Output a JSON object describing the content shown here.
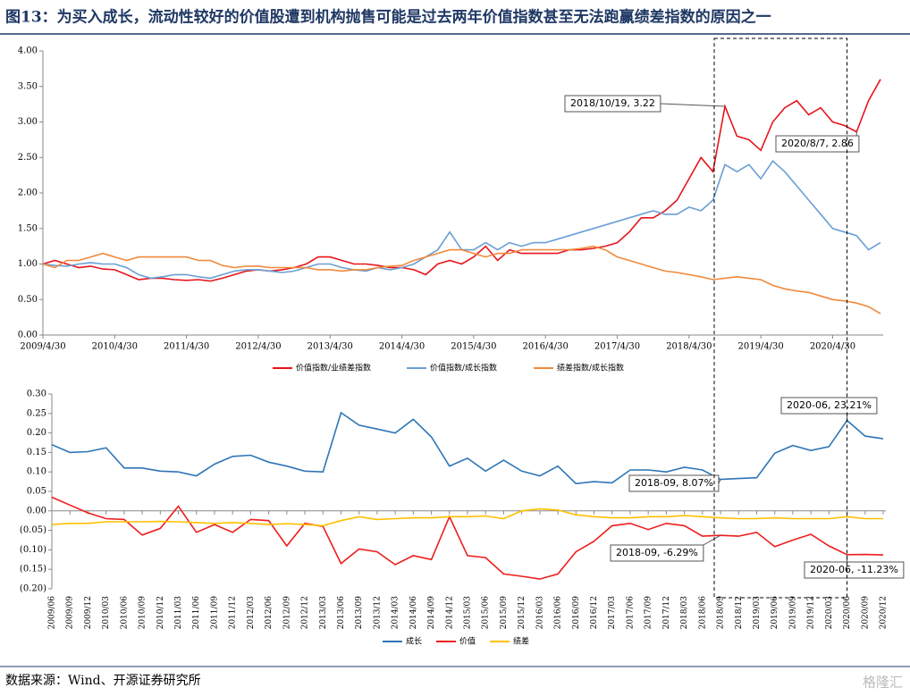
{
  "title": "图13：为买入成长，流动性较好的价值股遭到机构抛售可能是过去两年价值指数甚至无法跑赢绩差指数的原因之一",
  "source": "数据来源：Wind、开源证券研究所",
  "watermark": "格隆汇",
  "chart_data": [
    {
      "type": "line",
      "categories": [
        "2009/4/30",
        null,
        null,
        null,
        null,
        null,
        "2010/4/30",
        null,
        null,
        null,
        null,
        null,
        "2011/4/30",
        null,
        null,
        null,
        null,
        null,
        "2012/4/30",
        null,
        null,
        null,
        null,
        null,
        "2013/4/30",
        null,
        null,
        null,
        null,
        null,
        "2014/4/30",
        null,
        null,
        null,
        null,
        null,
        "2015/4/30",
        null,
        null,
        null,
        null,
        null,
        "2016/4/30",
        null,
        null,
        null,
        null,
        null,
        "2017/4/30",
        null,
        null,
        null,
        null,
        null,
        "2018/4/30",
        null,
        null,
        null,
        null,
        null,
        "2019/4/30",
        null,
        null,
        null,
        null,
        null,
        "2020/4/30",
        null,
        null,
        null,
        null
      ],
      "series": [
        {
          "name": "价值指数/业绩差指数",
          "color": "#e8141c",
          "values": [
            1.0,
            1.05,
            1.0,
            0.95,
            0.97,
            0.93,
            0.92,
            0.85,
            0.78,
            0.8,
            0.8,
            0.78,
            0.77,
            0.78,
            0.76,
            0.8,
            0.85,
            0.9,
            0.92,
            0.9,
            0.92,
            0.95,
            1.0,
            1.1,
            1.1,
            1.05,
            1.0,
            1.0,
            0.98,
            0.95,
            0.95,
            0.92,
            0.85,
            1.0,
            1.05,
            1.0,
            1.1,
            1.25,
            1.05,
            1.2,
            1.15,
            1.15,
            1.15,
            1.15,
            1.2,
            1.2,
            1.22,
            1.25,
            1.3,
            1.45,
            1.65,
            1.65,
            1.75,
            1.9,
            2.2,
            2.5,
            2.3,
            3.22,
            2.8,
            2.75,
            2.6,
            3.0,
            3.2,
            3.3,
            3.1,
            3.2,
            3.0,
            2.95,
            2.86,
            3.3,
            3.6
          ]
        },
        {
          "name": "价值指数/成长指数",
          "color": "#6a9fd4",
          "values": [
            1.0,
            0.98,
            0.97,
            1.0,
            1.02,
            1.0,
            1.0,
            0.95,
            0.85,
            0.8,
            0.82,
            0.85,
            0.85,
            0.82,
            0.8,
            0.85,
            0.9,
            0.92,
            0.92,
            0.9,
            0.88,
            0.9,
            0.95,
            1.0,
            1.0,
            0.95,
            0.92,
            0.9,
            0.95,
            0.92,
            0.95,
            1.0,
            1.1,
            1.2,
            1.45,
            1.2,
            1.2,
            1.3,
            1.2,
            1.3,
            1.25,
            1.3,
            1.3,
            1.35,
            1.4,
            1.45,
            1.5,
            1.55,
            1.6,
            1.65,
            1.7,
            1.75,
            1.7,
            1.7,
            1.8,
            1.75,
            1.9,
            2.4,
            2.3,
            2.4,
            2.2,
            2.45,
            2.3,
            2.1,
            1.9,
            1.7,
            1.5,
            1.45,
            1.4,
            1.2,
            1.3
          ]
        },
        {
          "name": "绩差指数/成长指数",
          "color": "#f08a3c",
          "values": [
            1.0,
            0.95,
            1.05,
            1.05,
            1.1,
            1.15,
            1.1,
            1.05,
            1.1,
            1.1,
            1.1,
            1.1,
            1.1,
            1.05,
            1.05,
            0.98,
            0.95,
            0.97,
            0.97,
            0.95,
            0.95,
            0.95,
            0.95,
            0.92,
            0.92,
            0.9,
            0.92,
            0.92,
            0.95,
            0.97,
            0.98,
            1.05,
            1.1,
            1.15,
            1.2,
            1.2,
            1.15,
            1.1,
            1.15,
            1.15,
            1.2,
            1.2,
            1.2,
            1.2,
            1.2,
            1.22,
            1.25,
            1.2,
            1.1,
            1.05,
            1.0,
            0.95,
            0.9,
            0.88,
            0.85,
            0.82,
            0.78,
            0.8,
            0.82,
            0.8,
            0.78,
            0.7,
            0.65,
            0.62,
            0.6,
            0.55,
            0.5,
            0.48,
            0.45,
            0.4,
            0.3
          ]
        }
      ],
      "ylim": [
        0,
        4
      ],
      "yticks": [
        {
          "value": 0,
          "label": "0.00"
        },
        {
          "value": 0.5,
          "label": "0.50"
        },
        {
          "value": 1,
          "label": "1.00"
        },
        {
          "value": 1.5,
          "label": "1.50"
        },
        {
          "value": 2,
          "label": "2.00"
        },
        {
          "value": 2.5,
          "label": "2.50"
        },
        {
          "value": 3,
          "label": "3.00"
        },
        {
          "value": 3.5,
          "label": "3.50"
        },
        {
          "value": 4,
          "label": "4.00"
        }
      ],
      "annotations": [
        "2018/10/19, 3.22",
        "2020/8/7, 2.86"
      ],
      "grid": false,
      "legend": "bottom"
    },
    {
      "type": "line",
      "categories": [
        "2009/06",
        "2009/09",
        "2009/12",
        "2010/03",
        "2010/06",
        "2010/09",
        "2010/12",
        "2011/03",
        "2011/06",
        "2011/09",
        "2011/12",
        "2012/03",
        "2012/06",
        "2012/09",
        "2012/12",
        "2013/03",
        "2013/06",
        "2013/09",
        "2013/12",
        "2014/03",
        "2014/06",
        "2014/09",
        "2014/12",
        "2015/03",
        "2015/06",
        "2015/09",
        "2015/12",
        "2016/03",
        "2016/06",
        "2016/09",
        "2016/12",
        "2017/03",
        "2017/06",
        "2017/09",
        "2017/12",
        "2018/03",
        "2018/06",
        "2018/09",
        "2018/12",
        "2019/03",
        "2019/06",
        "2019/09",
        "2019/12",
        "2020/03",
        "2020/06",
        "2020/09",
        "2020/12"
      ],
      "series": [
        {
          "name": "成长",
          "color": "#2e75b6",
          "values": [
            0.17,
            0.15,
            0.152,
            0.162,
            0.11,
            0.11,
            0.102,
            0.1,
            0.09,
            0.12,
            0.14,
            0.143,
            0.125,
            0.115,
            0.102,
            0.1,
            0.252,
            0.22,
            0.21,
            0.2,
            0.235,
            0.19,
            0.115,
            0.135,
            0.102,
            0.13,
            0.102,
            0.09,
            0.115,
            0.07,
            0.075,
            0.072,
            0.105,
            0.105,
            0.1,
            0.112,
            0.105,
            0.0807,
            0.083,
            0.085,
            0.148,
            0.168,
            0.155,
            0.165,
            0.2321,
            0.192,
            0.185
          ]
        },
        {
          "name": "价值",
          "color": "#ee1c1c",
          "values": [
            0.035,
            0.015,
            -0.005,
            -0.02,
            -0.022,
            -0.062,
            -0.045,
            0.012,
            -0.055,
            -0.035,
            -0.055,
            -0.022,
            -0.025,
            -0.09,
            -0.032,
            -0.04,
            -0.135,
            -0.098,
            -0.105,
            -0.138,
            -0.115,
            -0.125,
            -0.015,
            -0.115,
            -0.12,
            -0.162,
            -0.168,
            -0.175,
            -0.162,
            -0.105,
            -0.078,
            -0.038,
            -0.032,
            -0.048,
            -0.032,
            -0.038,
            -0.065,
            -0.0629,
            -0.065,
            -0.055,
            -0.092,
            -0.075,
            -0.06,
            -0.09,
            -0.1123,
            -0.112,
            -0.113
          ]
        },
        {
          "name": "绩差",
          "color": "#ffc000",
          "values": [
            -0.035,
            -0.032,
            -0.032,
            -0.028,
            -0.028,
            -0.028,
            -0.027,
            -0.028,
            -0.03,
            -0.032,
            -0.03,
            -0.032,
            -0.035,
            -0.033,
            -0.035,
            -0.038,
            -0.025,
            -0.015,
            -0.022,
            -0.02,
            -0.018,
            -0.018,
            -0.015,
            -0.015,
            -0.013,
            -0.02,
            0.0,
            0.005,
            0.002,
            -0.01,
            -0.015,
            -0.018,
            -0.018,
            -0.015,
            -0.015,
            -0.012,
            -0.015,
            -0.018,
            -0.02,
            -0.02,
            -0.018,
            -0.02,
            -0.02,
            -0.02,
            -0.015,
            -0.02,
            -0.02
          ]
        }
      ],
      "ylim": [
        -0.2,
        0.3
      ],
      "yticks": [
        {
          "value": -0.2,
          "label": "(0.20)"
        },
        {
          "value": -0.15,
          "label": "(0.15)"
        },
        {
          "value": -0.1,
          "label": "(0.10)"
        },
        {
          "value": -0.05,
          "label": "(0.05)"
        },
        {
          "value": 0,
          "label": "0.00"
        },
        {
          "value": 0.05,
          "label": "0.05"
        },
        {
          "value": 0.1,
          "label": "0.10"
        },
        {
          "value": 0.15,
          "label": "0.15"
        },
        {
          "value": 0.2,
          "label": "0.20"
        },
        {
          "value": 0.25,
          "label": "0.25"
        },
        {
          "value": 0.3,
          "label": "0.30"
        }
      ],
      "annotations": [
        "2020-06, 23.21%",
        "2018-09, 8.07%",
        "2018-09, -6.29%",
        "2020-06, -11.23%"
      ],
      "grid": false,
      "legend": "bottom"
    }
  ]
}
